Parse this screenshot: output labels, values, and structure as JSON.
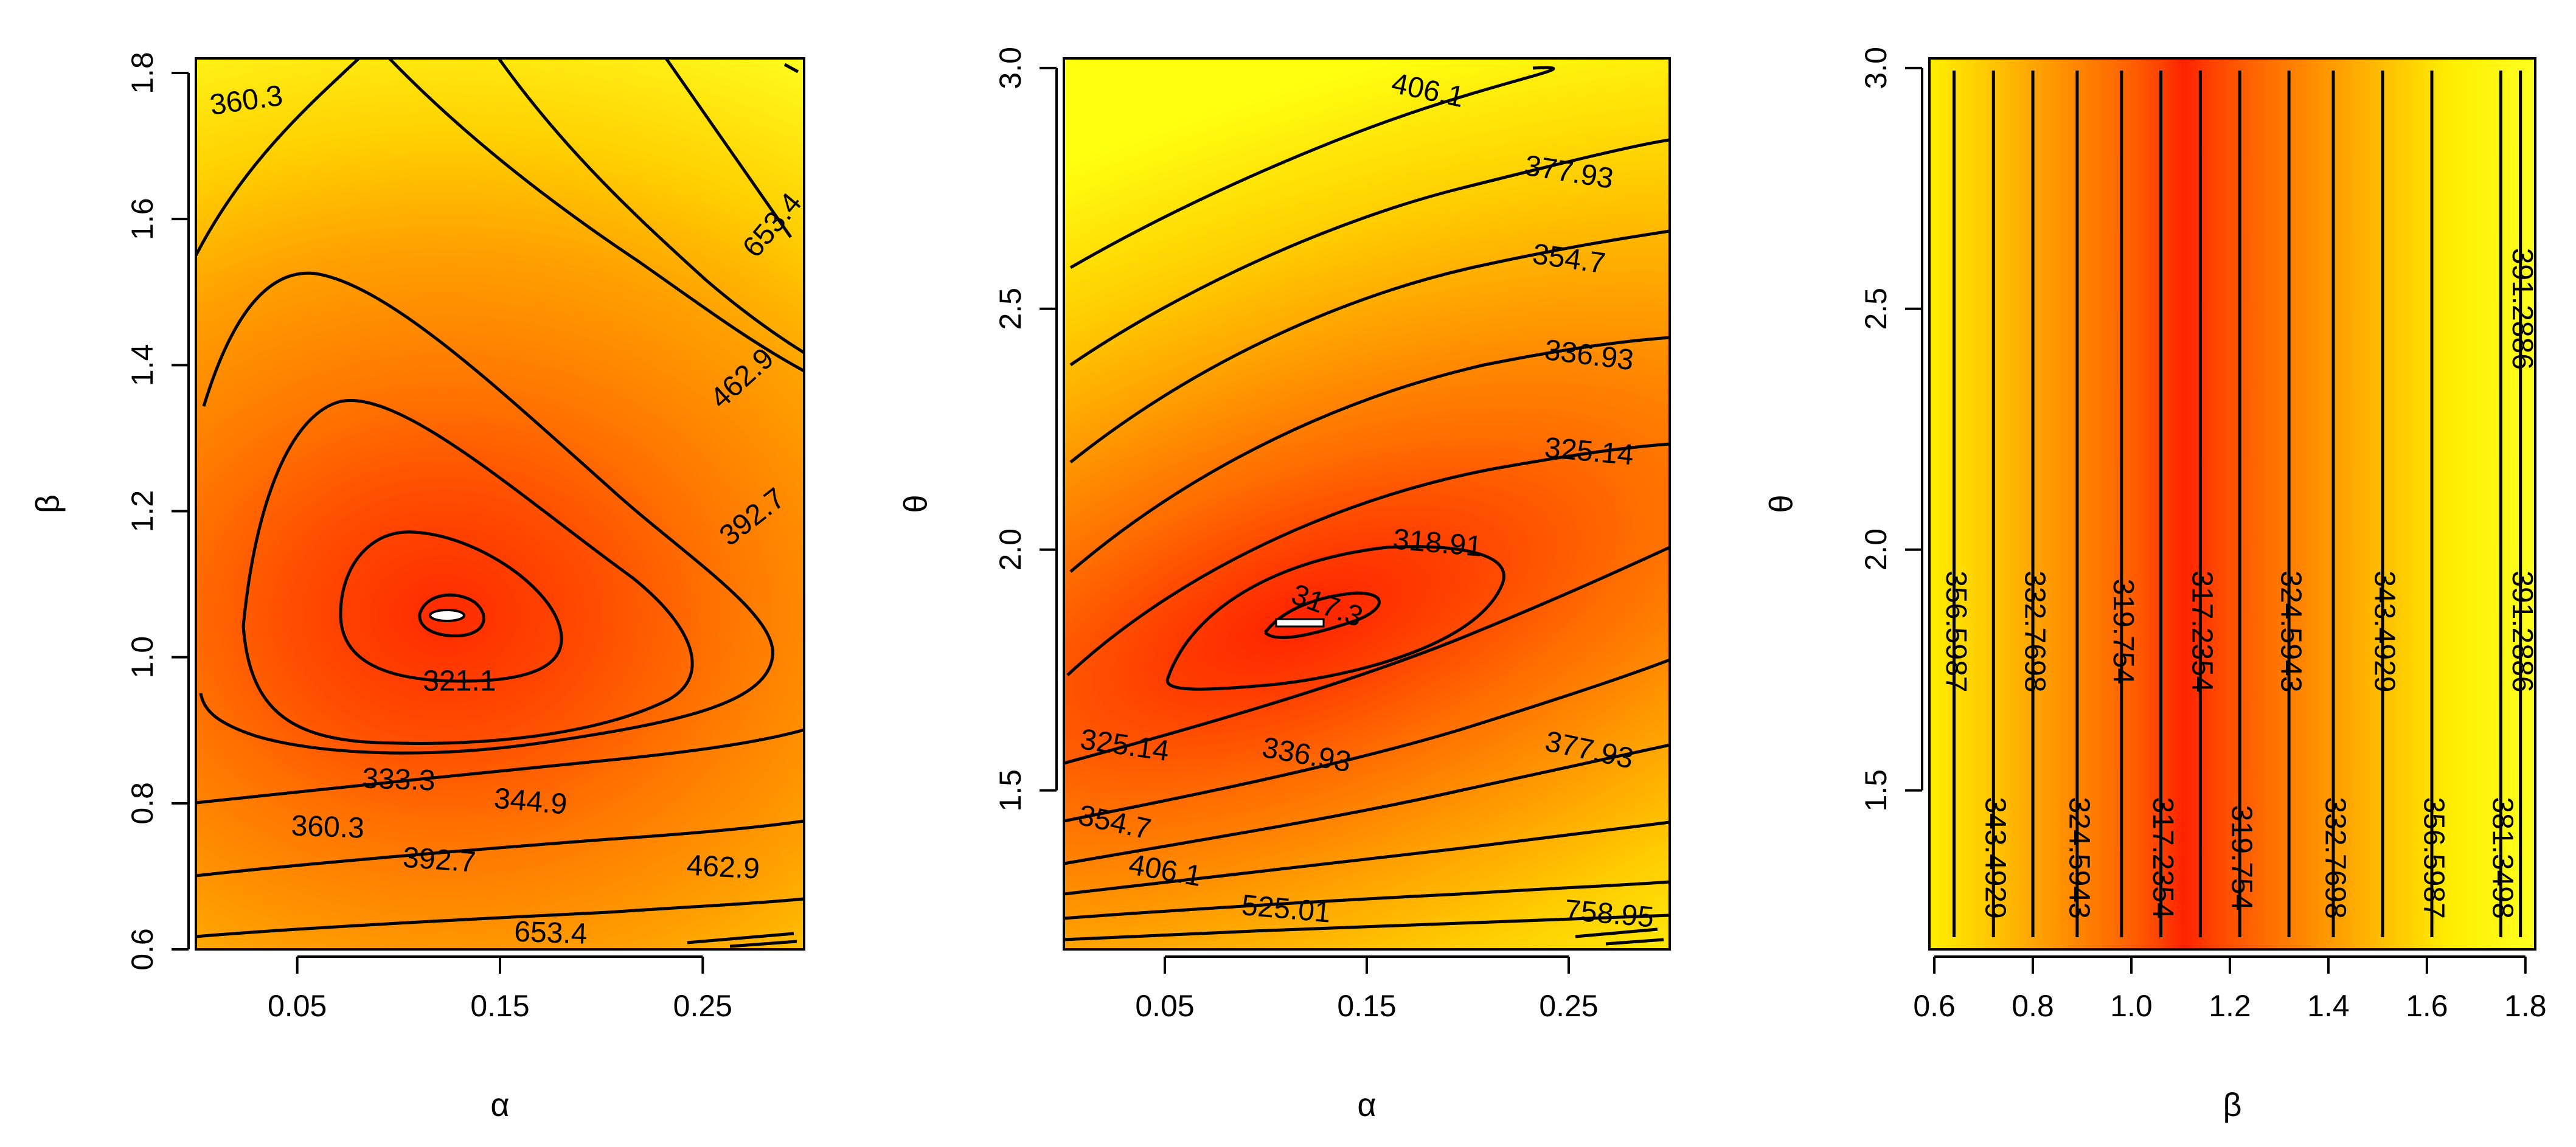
{
  "chart_data": [
    {
      "type": "heatmap",
      "subtype": "contour",
      "xlabel": "α",
      "ylabel": "β",
      "xlim": [
        0.0,
        0.3
      ],
      "ylim": [
        0.6,
        1.82
      ],
      "xticks": [
        "0.05",
        "0.15",
        "0.25"
      ],
      "xtick_values": [
        0.05,
        0.15,
        0.25
      ],
      "yticks": [
        "0.6",
        "0.8",
        "1.0",
        "1.2",
        "1.4",
        "1.6",
        "1.8"
      ],
      "ytick_values": [
        0.6,
        0.8,
        1.0,
        1.2,
        1.4,
        1.6,
        1.8
      ],
      "minimum": {
        "x": 0.13,
        "y": 1.04
      },
      "contour_labels": [
        {
          "text": "360.3",
          "x": 0.025,
          "y": 1.76,
          "angle": 8
        },
        {
          "text": "653.4",
          "x": 0.285,
          "y": 1.59,
          "angle": 50
        },
        {
          "text": "462.9",
          "x": 0.27,
          "y": 1.38,
          "angle": 42
        },
        {
          "text": "392.7",
          "x": 0.275,
          "y": 1.19,
          "angle": 38
        },
        {
          "text": "321.1",
          "x": 0.13,
          "y": 0.965,
          "angle": 0
        },
        {
          "text": "333.3",
          "x": 0.1,
          "y": 0.83,
          "angle": -2
        },
        {
          "text": "344.9",
          "x": 0.165,
          "y": 0.8,
          "angle": -5
        },
        {
          "text": "360.3",
          "x": 0.065,
          "y": 0.765,
          "angle": -2
        },
        {
          "text": "392.7",
          "x": 0.12,
          "y": 0.72,
          "angle": -4
        },
        {
          "text": "462.9",
          "x": 0.26,
          "y": 0.71,
          "angle": -3
        },
        {
          "text": "653.4",
          "x": 0.175,
          "y": 0.62,
          "angle": -2
        }
      ]
    },
    {
      "type": "heatmap",
      "subtype": "contour",
      "xlabel": "α",
      "ylabel": "θ",
      "xlim": [
        0.0,
        0.3
      ],
      "ylim": [
        1.17,
        3.02
      ],
      "xticks": [
        "0.05",
        "0.15",
        "0.25"
      ],
      "xtick_values": [
        0.05,
        0.15,
        0.25
      ],
      "yticks": [
        "1.5",
        "2.0",
        "2.5",
        "3.0"
      ],
      "ytick_values": [
        1.5,
        2.0,
        2.5,
        3.0
      ],
      "minimum": {
        "x": 0.125,
        "y": 1.85
      },
      "contour_labels": [
        {
          "text": "406.1",
          "x": 0.18,
          "y": 2.95,
          "angle": -12
        },
        {
          "text": "377.93",
          "x": 0.25,
          "y": 2.78,
          "angle": -9
        },
        {
          "text": "354.7",
          "x": 0.25,
          "y": 2.6,
          "angle": -8
        },
        {
          "text": "336.93",
          "x": 0.26,
          "y": 2.4,
          "angle": -7
        },
        {
          "text": "325.14",
          "x": 0.26,
          "y": 2.2,
          "angle": -5
        },
        {
          "text": "318.91",
          "x": 0.185,
          "y": 2.01,
          "angle": -5
        },
        {
          "text": "317.3",
          "x": 0.13,
          "y": 1.88,
          "angle": -20
        },
        {
          "text": "325.14",
          "x": 0.03,
          "y": 1.59,
          "angle": -8
        },
        {
          "text": "336.93",
          "x": 0.12,
          "y": 1.57,
          "angle": -10
        },
        {
          "text": "354.7",
          "x": 0.025,
          "y": 1.43,
          "angle": -12
        },
        {
          "text": "377.93",
          "x": 0.26,
          "y": 1.58,
          "angle": -12
        },
        {
          "text": "406.1",
          "x": 0.05,
          "y": 1.33,
          "angle": -10
        },
        {
          "text": "525.01",
          "x": 0.11,
          "y": 1.25,
          "angle": -5
        },
        {
          "text": "758.95",
          "x": 0.27,
          "y": 1.24,
          "angle": -5
        }
      ]
    },
    {
      "type": "heatmap",
      "subtype": "contour",
      "xlabel": "β",
      "ylabel": "θ",
      "xlim": [
        0.59,
        1.82
      ],
      "ylim": [
        1.17,
        3.02
      ],
      "xticks": [
        "0.6",
        "0.8",
        "1.0",
        "1.2",
        "1.4",
        "1.6",
        "1.8"
      ],
      "xtick_values": [
        0.6,
        0.8,
        1.0,
        1.2,
        1.4,
        1.6,
        1.8
      ],
      "yticks": [
        "1.5",
        "2.0",
        "2.5",
        "3.0"
      ],
      "ytick_values": [
        1.5,
        2.0,
        2.5,
        3.0
      ],
      "minimum": {
        "x": 1.12
      },
      "contour_lines": [
        0.64,
        0.72,
        0.8,
        0.89,
        0.98,
        1.06,
        1.14,
        1.22,
        1.32,
        1.41,
        1.51,
        1.61,
        1.75,
        1.79
      ],
      "contour_labels": [
        {
          "text": "356.5987",
          "x": 0.64,
          "y": 1.83,
          "angle": 90
        },
        {
          "text": "343.4929",
          "x": 0.72,
          "y": 1.36,
          "angle": 90
        },
        {
          "text": "332.7698",
          "x": 0.8,
          "y": 1.83,
          "angle": 90
        },
        {
          "text": "324.5943",
          "x": 0.89,
          "y": 1.36,
          "angle": 90
        },
        {
          "text": "319.754",
          "x": 0.98,
          "y": 1.83,
          "angle": 90
        },
        {
          "text": "317.2354",
          "x": 1.06,
          "y": 1.36,
          "angle": 90
        },
        {
          "text": "317.2354",
          "x": 1.14,
          "y": 1.83,
          "angle": 90
        },
        {
          "text": "319.754",
          "x": 1.22,
          "y": 1.36,
          "angle": 90
        },
        {
          "text": "324.5943",
          "x": 1.32,
          "y": 1.83,
          "angle": 90
        },
        {
          "text": "332.7698",
          "x": 1.41,
          "y": 1.36,
          "angle": 90
        },
        {
          "text": "343.4929",
          "x": 1.51,
          "y": 1.83,
          "angle": 90
        },
        {
          "text": "356.5987",
          "x": 1.61,
          "y": 1.36,
          "angle": 90
        },
        {
          "text": "381.3498",
          "x": 1.75,
          "y": 1.36,
          "angle": 90
        },
        {
          "text": "391.2886",
          "x": 1.79,
          "y": 1.83,
          "angle": 90
        },
        {
          "text": "391.2886",
          "x": 1.79,
          "y": 2.5,
          "angle": 90
        }
      ]
    }
  ]
}
